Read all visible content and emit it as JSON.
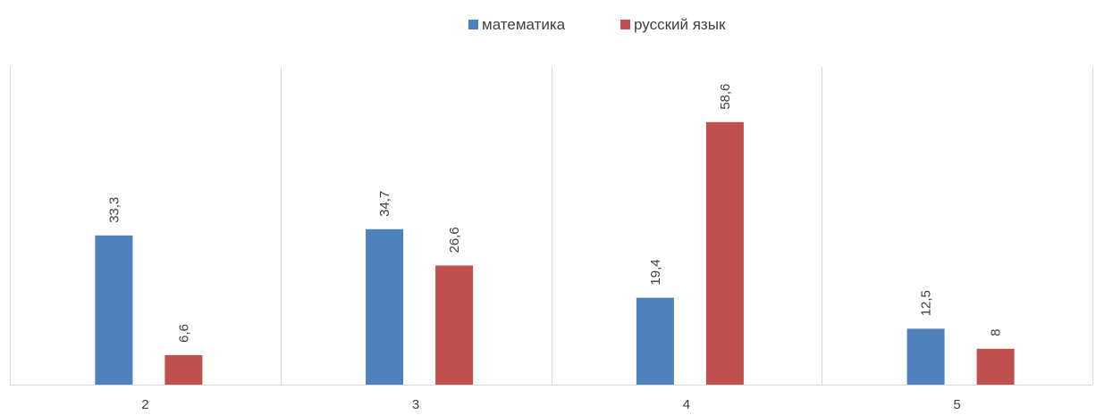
{
  "chart_data": {
    "type": "bar",
    "categories": [
      "2",
      "3",
      "4",
      "5"
    ],
    "series": [
      {
        "name": "математика",
        "values": [
          33.3,
          34.7,
          19.4,
          12.5
        ],
        "labels": [
          "33,3",
          "34,7",
          "19,4",
          "12,5"
        ],
        "color": "#4F81BD"
      },
      {
        "name": "русский язык",
        "values": [
          6.6,
          26.6,
          58.6,
          8
        ],
        "labels": [
          "6,6",
          "26,6",
          "58,6",
          "8"
        ],
        "color": "#C0504D"
      }
    ],
    "ylim": [
      0,
      70
    ],
    "grid": "vertical category separators",
    "legend_position": "top-center",
    "axis_color": "#D9D9D9",
    "text_color": "#404040"
  }
}
